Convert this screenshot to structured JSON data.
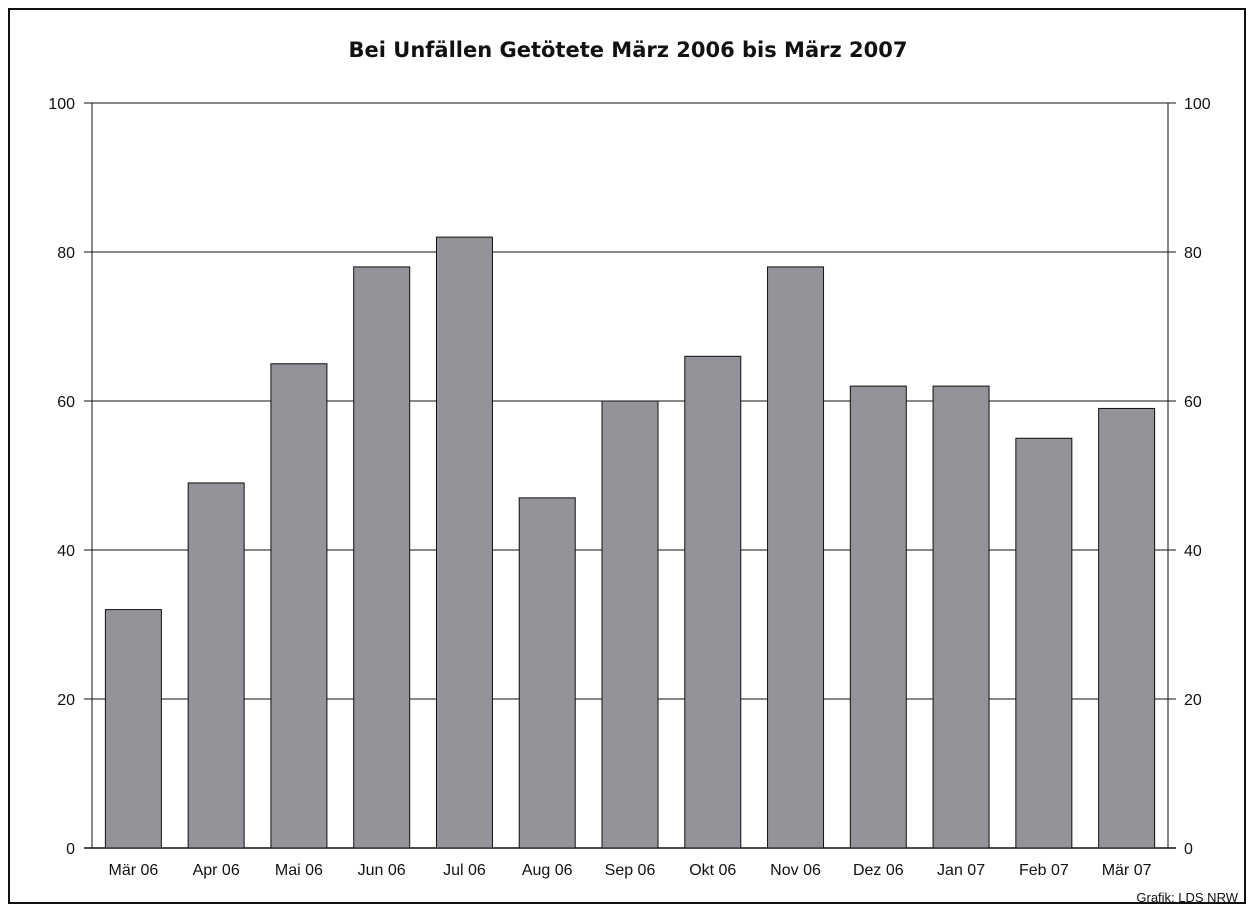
{
  "chart_data": {
    "type": "bar",
    "title": "Bei Unfällen Getötete März 2006 bis März 2007",
    "categories": [
      "Mär 06",
      "Apr 06",
      "Mai 06",
      "Jun 06",
      "Jul 06",
      "Aug 06",
      "Sep 06",
      "Okt 06",
      "Nov 06",
      "Dez 06",
      "Jan 07",
      "Feb 07",
      "Mär 07"
    ],
    "values": [
      32,
      49,
      65,
      78,
      82,
      47,
      60,
      66,
      78,
      62,
      62,
      55,
      59
    ],
    "ylim": [
      0,
      100
    ],
    "yticks": [
      0,
      20,
      40,
      60,
      80,
      100
    ],
    "ytick_labels": [
      "0",
      "20",
      "40",
      "60",
      "80",
      "100"
    ],
    "xlabel": "",
    "ylabel": "",
    "grid": true,
    "secondary_axis": true,
    "bar_color": "#939399",
    "credit": "Grafik: LDS NRW"
  }
}
